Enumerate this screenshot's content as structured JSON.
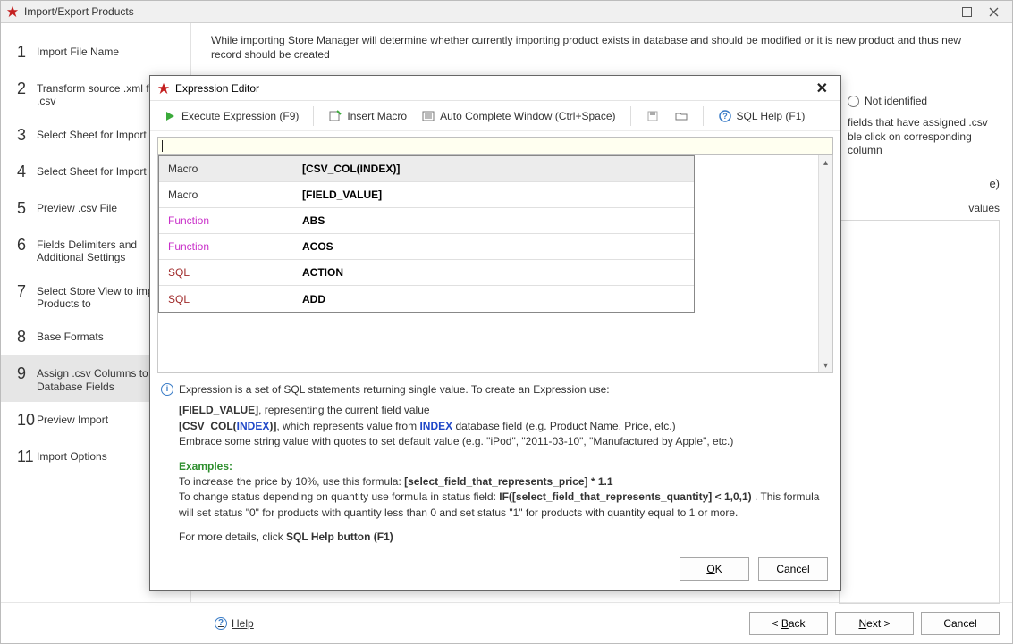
{
  "window": {
    "title": "Import/Export Products",
    "icon_name": "app-icon"
  },
  "sidebar": {
    "active_index": 8,
    "items": [
      {
        "num": "1",
        "label": "Import File Name"
      },
      {
        "num": "2",
        "label": "Transform source .xml file .csv"
      },
      {
        "num": "3",
        "label": "Select Sheet for Import"
      },
      {
        "num": "4",
        "label": "Select Sheet for Import"
      },
      {
        "num": "5",
        "label": "Preview .csv File"
      },
      {
        "num": "6",
        "label": "Fields Delimiters and Additional Settings"
      },
      {
        "num": "7",
        "label": "Select Store View to import Products to"
      },
      {
        "num": "8",
        "label": "Base Formats"
      },
      {
        "num": "9",
        "label": "Assign .csv Columns to Database Fields"
      },
      {
        "num": "10",
        "label": "Preview Import"
      },
      {
        "num": "11",
        "label": "Import Options"
      }
    ]
  },
  "main": {
    "intro": "While importing Store Manager will determine whether currently importing product exists in database and should be modified or it is new product and thus new record should be created",
    "radio_label": "Not identified",
    "snippet_line1": "fields that have assigned .csv",
    "snippet_line2": "ble click on corresponding column",
    "below1": "e)",
    "below2": "values"
  },
  "dialog": {
    "title": "Expression Editor",
    "toolbar": {
      "execute": "Execute Expression (F9)",
      "insert_macro": "Insert Macro",
      "auto_complete": "Auto Complete Window (Ctrl+Space)",
      "sql_help": "SQL Help (F1)"
    },
    "suggest": {
      "rows": [
        {
          "type": "Macro",
          "class": "macro",
          "value": "[CSV_COL(INDEX)]",
          "selected": true
        },
        {
          "type": "Macro",
          "class": "macro",
          "value": "[FIELD_VALUE]",
          "selected": false
        },
        {
          "type": "Function",
          "class": "function",
          "value": "ABS",
          "selected": false
        },
        {
          "type": "Function",
          "class": "function",
          "value": "ACOS",
          "selected": false
        },
        {
          "type": "SQL",
          "class": "sql",
          "value": "ACTION",
          "selected": false
        },
        {
          "type": "SQL",
          "class": "sql",
          "value": "ADD",
          "selected": false
        }
      ]
    },
    "info": {
      "head": "Expression is a set of SQL statements returning single value. To create an Expression use:",
      "fv": "[FIELD_VALUE]",
      "fv_text": ", representing the current field value",
      "cc_open": "[CSV_COL(",
      "cc_index": "INDEX",
      "cc_close": ")]",
      "cc_text1": ", which represents value from ",
      "cc_text2": " database field (e.g. Product Name, Price, etc.)",
      "embrace": "Embrace some string value with quotes to set default value (e.g. \"iPod\", \"2011-03-10\", \"Manufactured by Apple\", etc.)",
      "examples_label": "Examples:",
      "ex1_pre": "  To increase the price by 10%, use this formula: ",
      "ex1_bold": "[select_field_that_represents_price] * 1.1",
      "ex2_pre": "  To change status depending on quantity use formula in status field: ",
      "ex2_bold": "IF([select_field_that_represents_quantity] < 1,0,1)",
      "ex2_post": " . This formula will set status \"0\" for products with quantity less than 0 and set status \"1\" for products with quantity equal to 1 or more.",
      "more_pre": "For more details, click ",
      "more_bold": "SQL Help button (F1)"
    },
    "buttons": {
      "ok_u": "O",
      "ok_rest": "K",
      "cancel": "Cancel"
    }
  },
  "bottom": {
    "help_u": "H",
    "help_rest": "elp",
    "back_pre": "< ",
    "back_u": "B",
    "back_rest": "ack",
    "next_u": "N",
    "next_rest": "ext >",
    "cancel": "Cancel"
  }
}
